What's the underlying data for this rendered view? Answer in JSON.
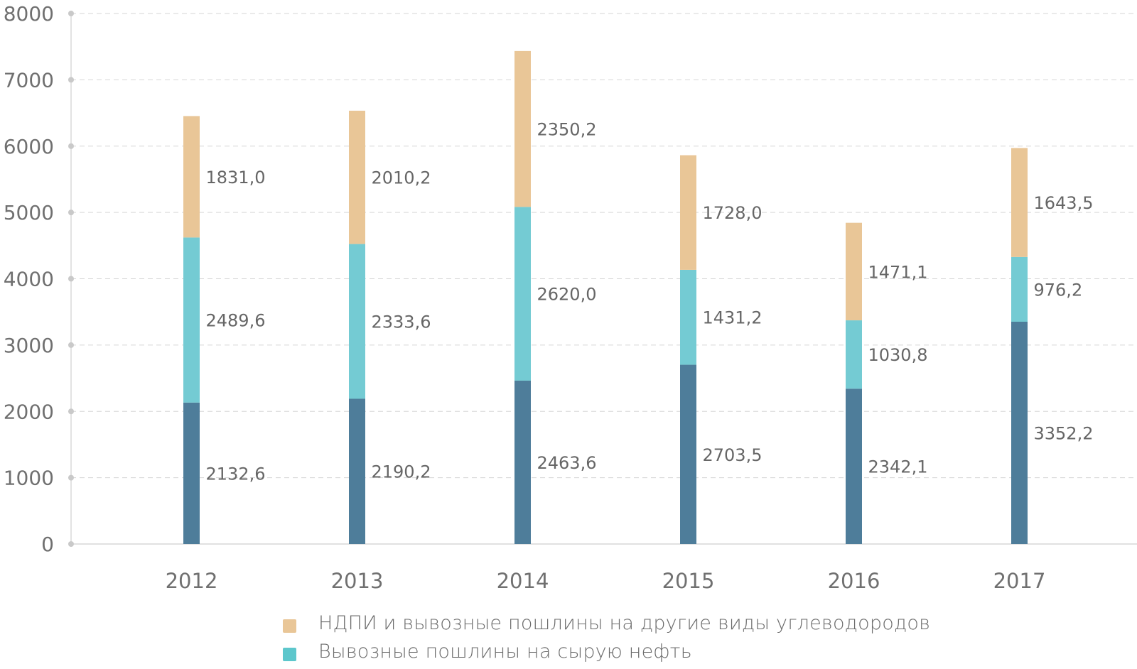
{
  "chart_data": {
    "type": "bar",
    "stacked": true,
    "categories": [
      "2012",
      "2013",
      "2014",
      "2015",
      "2016",
      "2017"
    ],
    "series": [
      {
        "name": "",
        "color": "#4e7d9a",
        "values": [
          2132.6,
          2190.2,
          2463.6,
          2703.5,
          2342.1,
          3352.2
        ],
        "labels": [
          "2132,6",
          "2190,2",
          "2463,6",
          "2703,5",
          "2342,1",
          "3352,2"
        ]
      },
      {
        "name": "Вывозные пошлины на сырую нефть",
        "color": "#74cbd3",
        "values": [
          2489.6,
          2333.6,
          2620.0,
          1431.2,
          1030.8,
          976.2
        ],
        "labels": [
          "2489,6",
          "2333,6",
          "2620,0",
          "1431,2",
          "1030,8",
          "976,2"
        ]
      },
      {
        "name": "НДПИ и вывозные пошлины на другие виды углеводородов",
        "color": "#e9c697",
        "values": [
          1831.0,
          2010.2,
          2350.2,
          1728.0,
          1471.1,
          1643.5
        ],
        "labels": [
          "1831,0",
          "2010,2",
          "2350,2",
          "1728,0",
          "1471,1",
          "1643,5"
        ]
      }
    ],
    "title": "",
    "xlabel": "",
    "ylabel": "",
    "ylim": [
      0,
      8000
    ],
    "yticks": [
      0,
      1000,
      2000,
      3000,
      4000,
      5000,
      6000,
      7000,
      8000
    ],
    "grid": true,
    "legend_position": "bottom"
  },
  "legend": {
    "items": [
      {
        "label": "НДПИ и вывозные пошлины на другие виды углеводородов",
        "color": "#e9c697"
      },
      {
        "label": "Вывозные пошлины на сырую нефть",
        "color": "#5dc7cc"
      }
    ]
  }
}
